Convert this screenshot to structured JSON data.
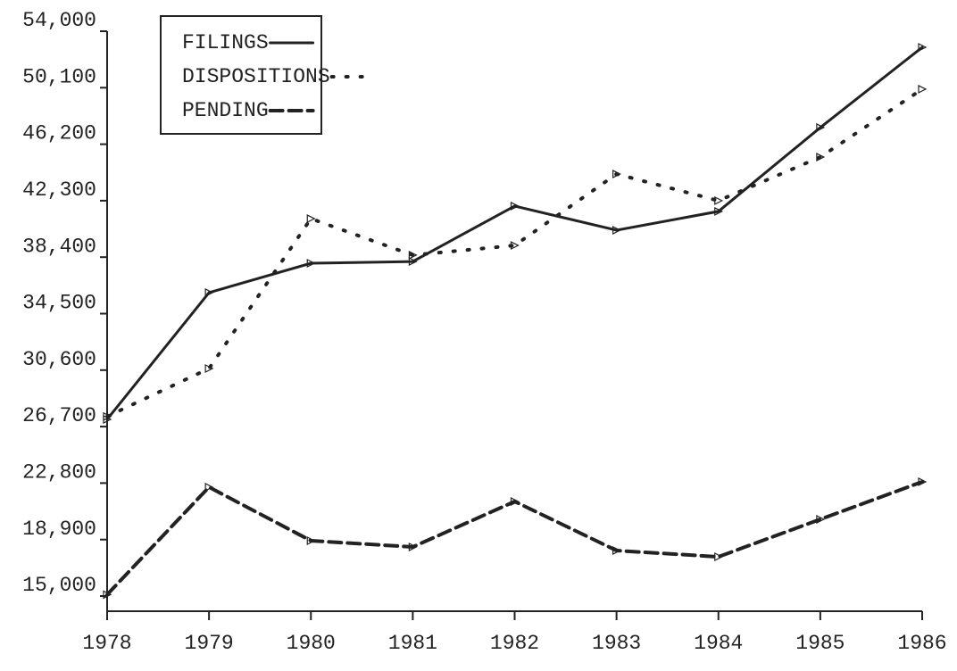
{
  "chart_data": {
    "type": "line",
    "x": [
      1978,
      1979,
      1980,
      1981,
      1982,
      1983,
      1984,
      1985,
      1986
    ],
    "xlim": [
      1978,
      1986
    ],
    "xticks": [
      1978,
      1979,
      1980,
      1981,
      1982,
      1983,
      1984,
      1985,
      1986
    ],
    "ylim": [
      15000,
      54000
    ],
    "yticks": [
      {
        "value": 15000,
        "label": "15,000"
      },
      {
        "value": 18900,
        "label": "18,900"
      },
      {
        "value": 22800,
        "label": "22,800"
      },
      {
        "value": 26700,
        "label": "26,700"
      },
      {
        "value": 30600,
        "label": "30,600"
      },
      {
        "value": 34500,
        "label": "34,500"
      },
      {
        "value": 38400,
        "label": "38,400"
      },
      {
        "value": 42300,
        "label": "42,300"
      },
      {
        "value": 46200,
        "label": "46,200"
      },
      {
        "value": 50100,
        "label": "50,100"
      },
      {
        "value": 54000,
        "label": "54,000"
      }
    ],
    "legend": "top-left",
    "series": [
      {
        "name": "FILINGS",
        "color": "#222222",
        "dash": "solid",
        "values": [
          27200,
          35950,
          37980,
          38100,
          41930,
          40260,
          41560,
          47350,
          52890
        ]
      },
      {
        "name": "DISPOSITIONS",
        "color": "#222222",
        "dash": "dotted",
        "values": [
          27400,
          30710,
          41060,
          38540,
          39210,
          44140,
          42300,
          45310,
          50000
        ]
      },
      {
        "name": "PENDING",
        "color": "#222222",
        "dash": "dashed",
        "values": [
          15100,
          22520,
          18820,
          18390,
          21530,
          18140,
          17710,
          20300,
          22890
        ]
      }
    ]
  }
}
